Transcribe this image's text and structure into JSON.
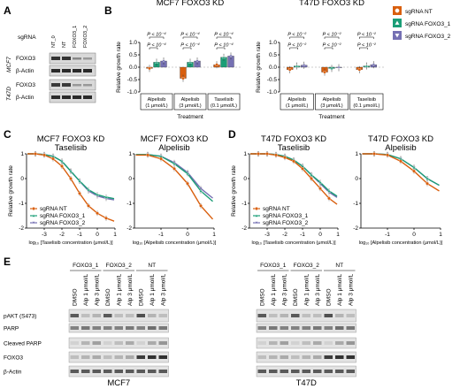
{
  "panels": {
    "a": "A",
    "b": "B",
    "c": "C",
    "d": "D",
    "e": "E"
  },
  "panel_a": {
    "sgrna_label": "sgRNA",
    "lanes": [
      "NT_0",
      "NT",
      "FOXO3_1",
      "FOXO3_2"
    ],
    "cell_lines": [
      "MCF7",
      "T47D"
    ],
    "bands": [
      "FOXO3",
      "β-Actin"
    ]
  },
  "legend_b": {
    "entries": [
      {
        "name": "sgRNA NT",
        "color": "#d95f0e",
        "marker": "circle"
      },
      {
        "name": "sgRNA FOXO3_1",
        "color": "#1b9e77",
        "marker": "triangle"
      },
      {
        "name": "sgRNA FOXO3_2",
        "color": "#7570b3",
        "marker": "inverted-triangle"
      }
    ]
  },
  "legend_cd": {
    "entries": [
      "sgRNA NT",
      "sgRNA FOXO3_1",
      "sgRNA FOXO3_2"
    ]
  },
  "chart_data": [
    {
      "type": "bar",
      "title": "MCF7 FOXO3 KD",
      "xlabel": "Treatment",
      "ylabel": "Relative growth rate",
      "ylim": [
        -1.0,
        1.0
      ],
      "yticks": [
        "1.0",
        "0.5",
        "0.0",
        "-0.5",
        "-1.0"
      ],
      "categories": [
        "Alpelisib (1 μmol/L)",
        "Alpelisib (3 μmol/L)",
        "Taselisib (0.1 μmol/L)"
      ],
      "cat_lines": [
        [
          "Alpelisib",
          "(1 μmol/L)"
        ],
        [
          "Alpelisib",
          "(3 μmol/L)"
        ],
        [
          "Taselisib",
          "(0.1 μmol/L)"
        ]
      ],
      "series": [
        {
          "name": "sgRNA NT",
          "values": [
            -0.05,
            -0.45,
            0.1
          ]
        },
        {
          "name": "sgRNA FOXO3_1",
          "values": [
            0.2,
            0.2,
            0.4
          ]
        },
        {
          "name": "sgRNA FOXO3_2",
          "values": [
            0.25,
            0.25,
            0.45
          ]
        }
      ],
      "pvalues": [
        [
          "P < 10⁻⁴",
          "P < 10⁻⁴"
        ],
        [
          "P < 10⁻⁴",
          "P < 10⁻⁴"
        ],
        [
          "P < 10⁻⁴",
          "P < 10⁻⁴"
        ]
      ]
    },
    {
      "type": "bar",
      "title": "T47D FOXO3 KD",
      "xlabel": "Treatment",
      "ylabel": "Relative growth rate",
      "ylim": [
        -1.0,
        1.0
      ],
      "yticks": [
        "1.0",
        "0.5",
        "0.0",
        "-0.5",
        "-1.0"
      ],
      "categories": [
        "Alpelisib (1 μmol/L)",
        "Alpelisib (3 μmol/L)",
        "Taselisib (0.1 μmol/L)"
      ],
      "cat_lines": [
        [
          "Alpelisib",
          "(1 μmol/L)"
        ],
        [
          "Alpelisib",
          "(3 μmol/L)"
        ],
        [
          "Taselisib",
          "(0.1 μmol/L)"
        ]
      ],
      "series": [
        {
          "name": "sgRNA NT",
          "values": [
            -0.1,
            -0.2,
            -0.1
          ]
        },
        {
          "name": "sgRNA FOXO3_1",
          "values": [
            0.05,
            -0.05,
            0.05
          ]
        },
        {
          "name": "sgRNA FOXO3_2",
          "values": [
            0.08,
            -0.02,
            0.1
          ]
        }
      ],
      "pvalues": [
        [
          "P < 10⁻²",
          "P < 10⁻²"
        ],
        [
          "P < 10⁻²",
          "P < 10⁻²"
        ],
        [
          "P < 10⁻²",
          "P < 10⁻²"
        ]
      ]
    },
    {
      "type": "line",
      "title": "MCF7 FOXO3 KD",
      "subtitle": "Taselisib",
      "xlabel": "log₁₀ [Taselisib concentration (μmol/L)]",
      "ylabel": "Relative growth rate",
      "xlim": [
        -4,
        1
      ],
      "xticks": [
        "-3",
        "-2",
        "-1",
        "0",
        "1"
      ],
      "ylim": [
        -2,
        1
      ],
      "yticks": [
        "1",
        "0",
        "-1",
        "-2"
      ],
      "x": [
        -3.5,
        -3,
        -2.5,
        -2,
        -1.5,
        -1,
        -0.5,
        0,
        0.5
      ],
      "series": [
        {
          "name": "sgRNA NT",
          "values": [
            1.0,
            0.95,
            0.8,
            0.5,
            0.0,
            -0.6,
            -1.1,
            -1.4,
            -1.6
          ]
        },
        {
          "name": "sgRNA FOXO3_1",
          "values": [
            1.0,
            0.97,
            0.9,
            0.7,
            0.3,
            -0.1,
            -0.45,
            -0.65,
            -0.75
          ]
        },
        {
          "name": "sgRNA FOXO3_2",
          "values": [
            1.0,
            0.97,
            0.9,
            0.7,
            0.3,
            -0.1,
            -0.5,
            -0.7,
            -0.8
          ]
        }
      ]
    },
    {
      "type": "line",
      "title": "MCF7 FOXO3 KD",
      "subtitle": "Alpelisib",
      "xlabel": "log₁₀ [Alpelisib concentration (μmol/L)]",
      "ylabel": "",
      "xlim": [
        -2,
        1
      ],
      "xticks": [
        "-1",
        "0",
        "1"
      ],
      "ylim": [
        -2,
        1
      ],
      "yticks": [
        "1",
        "0",
        "-1",
        "-2"
      ],
      "x": [
        -1.5,
        -1,
        -0.5,
        0,
        0.5
      ],
      "series": [
        {
          "name": "sgRNA NT",
          "values": [
            0.95,
            0.8,
            0.4,
            -0.2,
            -1.1
          ]
        },
        {
          "name": "sgRNA FOXO3_1",
          "values": [
            0.97,
            0.9,
            0.6,
            0.2,
            -0.5
          ]
        },
        {
          "name": "sgRNA FOXO3_2",
          "values": [
            0.97,
            0.9,
            0.65,
            0.25,
            -0.4
          ]
        }
      ]
    },
    {
      "type": "line",
      "title": "T47D FOXO3 KD",
      "subtitle": "Taselisib",
      "xlabel": "log₁₀ [Taselisib concentration (μmol/L)]",
      "ylabel": "Relative growth rate",
      "xlim": [
        -4,
        1
      ],
      "xticks": [
        "-3",
        "-2",
        "-1",
        "0",
        "1"
      ],
      "ylim": [
        -2,
        1
      ],
      "yticks": [
        "1",
        "0",
        "-1",
        "-2"
      ],
      "x": [
        -3.5,
        -3,
        -2.5,
        -2,
        -1.5,
        -1,
        -0.5,
        0,
        0.5
      ],
      "series": [
        {
          "name": "sgRNA NT",
          "values": [
            1.0,
            1.0,
            0.95,
            0.85,
            0.7,
            0.4,
            0.0,
            -0.4,
            -0.8
          ]
        },
        {
          "name": "sgRNA FOXO3_1",
          "values": [
            1.0,
            1.0,
            0.97,
            0.9,
            0.75,
            0.5,
            0.15,
            -0.15,
            -0.5
          ]
        },
        {
          "name": "sgRNA FOXO3_2",
          "values": [
            1.0,
            1.0,
            0.97,
            0.9,
            0.75,
            0.5,
            0.15,
            -0.2,
            -0.55
          ]
        }
      ]
    },
    {
      "type": "line",
      "title": "T47D FOXO3 KD",
      "subtitle": "Alpelisib",
      "xlabel": "log₁₀ [Alpelisib concentration (μmol/L)]",
      "ylabel": "",
      "xlim": [
        -2,
        1
      ],
      "xticks": [
        "-1",
        "0",
        "1"
      ],
      "ylim": [
        -2,
        1
      ],
      "yticks": [
        "1",
        "0",
        "-1",
        "-2"
      ],
      "x": [
        -1.5,
        -1,
        -0.5,
        0,
        0.5
      ],
      "series": [
        {
          "name": "sgRNA NT",
          "values": [
            1.0,
            0.95,
            0.7,
            0.3,
            -0.2
          ]
        },
        {
          "name": "sgRNA FOXO3_1",
          "values": [
            1.0,
            0.97,
            0.8,
            0.45,
            0.0
          ]
        },
        {
          "name": "sgRNA FOXO3_2",
          "values": [
            1.0,
            0.97,
            0.8,
            0.45,
            0.0
          ]
        }
      ]
    }
  ],
  "panel_e": {
    "groups": [
      "FOXO3_1",
      "FOXO3_2",
      "NT",
      "FOXO3_1",
      "FOXO3_2",
      "NT"
    ],
    "lane_labels": [
      "DMSO",
      "Alp 1 μmol/L",
      "Alp 3 μmol/L"
    ],
    "bands": [
      "pAKT (S473)",
      "PARP",
      "Cleaved PARP",
      "FOXO3",
      "β-Actin"
    ],
    "cell_lines": [
      "MCF7",
      "T47D"
    ]
  },
  "colors": {
    "nt": "#d95f0e",
    "foxo3_1": "#1b9e77",
    "foxo3_2": "#7570b3"
  }
}
